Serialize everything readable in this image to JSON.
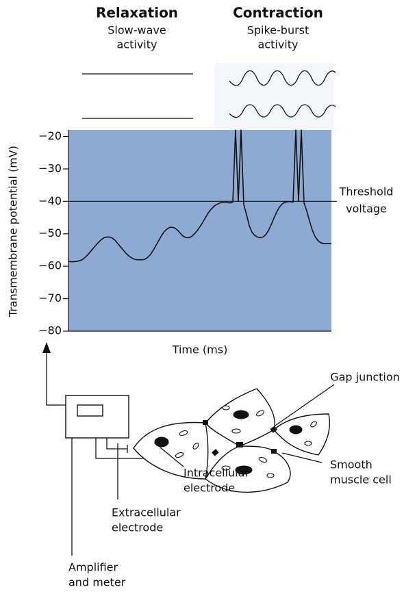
{
  "header": {
    "relaxation": {
      "title": "Relaxation",
      "subtitle": [
        "Slow-wave",
        "activity"
      ]
    },
    "contraction": {
      "title": "Contraction",
      "subtitle": [
        "Spike-burst",
        "activity"
      ]
    }
  },
  "chart_data": {
    "type": "line",
    "y_label": "Transmembrane potential (mV)",
    "x_label": "Time (ms)",
    "ylim": [
      -80,
      -18
    ],
    "yticks": [
      {
        "value": -20,
        "label": "−20"
      },
      {
        "value": -30,
        "label": "−30"
      },
      {
        "value": -40,
        "label": "−40"
      },
      {
        "value": -50,
        "label": "−50"
      },
      {
        "value": -60,
        "label": "−60"
      },
      {
        "value": -70,
        "label": "−70"
      },
      {
        "value": -80,
        "label": "−80"
      }
    ],
    "color": "#111111",
    "background": "#8faad2",
    "threshold": {
      "value": -40,
      "label": [
        "Threshold",
        "voltage"
      ]
    },
    "values": [
      -58.5,
      -58.6,
      -58.6,
      -58.5,
      -58.3,
      -58,
      -57.3,
      -56.5,
      -55.5,
      -54.5,
      -53.5,
      -52.6,
      -51.8,
      -51.2,
      -51,
      -51,
      -51.3,
      -52,
      -53,
      -54,
      -55,
      -56,
      -56.8,
      -57.4,
      -57.8,
      -58,
      -58,
      -58,
      -57.8,
      -57.2,
      -56.3,
      -55,
      -53.5,
      -52,
      -50.5,
      -49.3,
      -48.5,
      -48,
      -48,
      -48.3,
      -49,
      -50,
      -50.8,
      -51.2,
      -51.2,
      -50.8,
      -50,
      -49,
      -47.8,
      -46.5,
      -45,
      -43.6,
      -42.5,
      -41.6,
      -41,
      -40.6,
      -40.3,
      -40.2,
      -40.3,
      -40.5,
      -40.2,
      -18,
      -40,
      -18,
      -41,
      -44,
      -47.5,
      -49.5,
      -50.5,
      -51,
      -51.2,
      -51,
      -50.3,
      -49,
      -47.2,
      -45.2,
      -43.3,
      -41.8,
      -40.8,
      -40.3,
      -40.1,
      -40.1,
      -40.2,
      -18,
      -40,
      -18,
      -40.5,
      -43,
      -46,
      -48.8,
      -50.8,
      -52,
      -52.7,
      -53,
      -53,
      -53,
      -53
    ]
  },
  "apparatus": {
    "gap_junction": "Gap junction",
    "smooth_muscle_cell": [
      "Smooth",
      "muscle cell"
    ],
    "intracellular_electrode": [
      "Intracellular",
      "electrode"
    ],
    "extracellular_electrode": [
      "Extracellular",
      "electrode"
    ],
    "amplifier": [
      "Amplifier",
      "and meter"
    ]
  }
}
